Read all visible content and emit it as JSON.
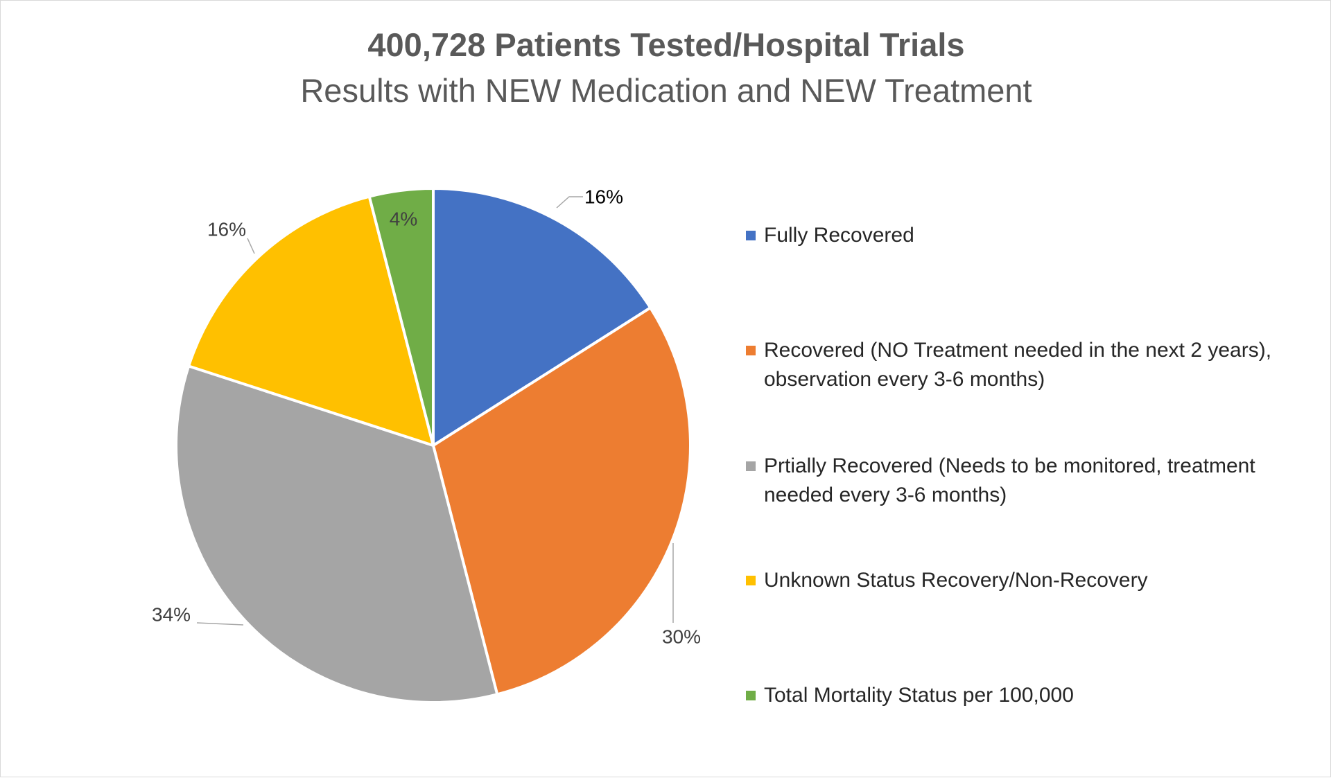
{
  "chart_data": {
    "type": "pie",
    "title": "400,728 Patients Tested/Hospital Trials",
    "subtitle": "Results with NEW Medication and NEW Treatment",
    "legend_position": "right",
    "slices": [
      {
        "name": "Fully Recovered",
        "value": 16,
        "label": "16%",
        "color": "#4472c4"
      },
      {
        "name": "Recovered (NO Treatment needed in the next 2 years), observation every 3-6 months)",
        "value": 30,
        "label": "30%",
        "color": "#ed7d31"
      },
      {
        "name": "Prtially Recovered (Needs to be monitored, treatment needed every 3-6 months)",
        "value": 34,
        "label": "34%",
        "color": "#a5a5a5"
      },
      {
        "name": "Unknown Status Recovery/Non-Recovery",
        "value": 16,
        "label": "16%",
        "color": "#ffc000"
      },
      {
        "name": "Total Mortality Status per 100,000",
        "value": 4,
        "label": "4%",
        "color": "#70ad47"
      }
    ]
  }
}
